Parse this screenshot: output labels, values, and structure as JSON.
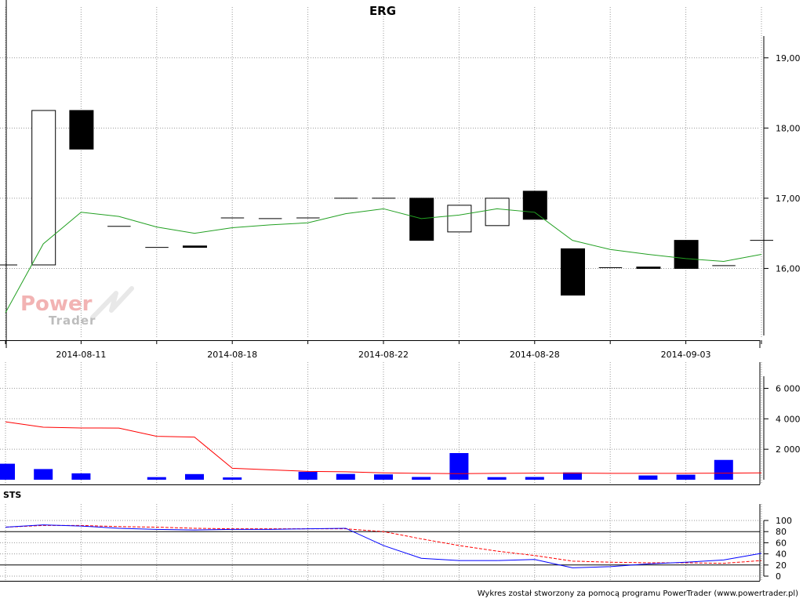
{
  "chart_data": [
    {
      "type": "candlestick",
      "title": "ERG",
      "x": [
        "2014-08-07",
        "2014-08-08",
        "2014-08-11",
        "2014-08-12",
        "2014-08-13",
        "2014-08-14",
        "2014-08-18",
        "2014-08-19",
        "2014-08-20",
        "2014-08-21",
        "2014-08-22",
        "2014-08-25",
        "2014-08-26",
        "2014-08-27",
        "2014-08-28",
        "2014-08-29",
        "2014-09-01",
        "2014-09-02",
        "2014-09-03",
        "2014-09-04",
        "2014-09-05"
      ],
      "x_tick_labels": [
        "2014-08-11",
        "2014-08-18",
        "2014-08-22",
        "2014-08-28",
        "2014-09-03"
      ],
      "candles": [
        {
          "open": 16.05,
          "close": 16.05
        },
        {
          "open": 16.05,
          "close": 18.25
        },
        {
          "open": 18.25,
          "close": 17.7
        },
        {
          "open": 16.6,
          "close": 16.6
        },
        {
          "open": 16.3,
          "close": 16.3
        },
        {
          "open": 16.32,
          "close": 16.3
        },
        {
          "open": 16.72,
          "close": 16.72
        },
        {
          "open": 16.71,
          "close": 16.71
        },
        {
          "open": 16.72,
          "close": 16.72
        },
        {
          "open": 17.0,
          "close": 17.0
        },
        {
          "open": 17.0,
          "close": 17.0
        },
        {
          "open": 17.0,
          "close": 16.4
        },
        {
          "open": 16.52,
          "close": 16.9
        },
        {
          "open": 16.61,
          "close": 17.0
        },
        {
          "open": 17.1,
          "close": 16.7
        },
        {
          "open": 16.28,
          "close": 15.62
        },
        {
          "open": 16.01,
          "close": 16.01
        },
        {
          "open": 16.02,
          "close": 16.0
        },
        {
          "open": 16.4,
          "close": 16.0
        },
        {
          "open": 16.04,
          "close": 16.03
        },
        {
          "open": 16.4,
          "close": 16.4
        }
      ],
      "series": [
        {
          "name": "MA",
          "color": "#22a022",
          "values": [
            15.37,
            16.35,
            16.8,
            16.74,
            16.59,
            16.5,
            16.58,
            16.62,
            16.65,
            16.78,
            16.85,
            16.71,
            16.76,
            16.85,
            16.8,
            16.4,
            16.27,
            16.2,
            16.14,
            16.1,
            16.2
          ]
        }
      ],
      "y_ticks": [
        "16,00",
        "17,00",
        "18,00",
        "19,00"
      ],
      "ylim": [
        15.0,
        19.5
      ],
      "grid": true,
      "colors": {
        "up_fill": "#ffffff",
        "down_fill": "#000000",
        "ma": "#22a022"
      }
    },
    {
      "type": "bar",
      "x": [
        "2014-08-07",
        "2014-08-08",
        "2014-08-11",
        "2014-08-12",
        "2014-08-13",
        "2014-08-14",
        "2014-08-18",
        "2014-08-19",
        "2014-08-20",
        "2014-08-21",
        "2014-08-22",
        "2014-08-25",
        "2014-08-26",
        "2014-08-27",
        "2014-08-28",
        "2014-08-29",
        "2014-09-01",
        "2014-09-02",
        "2014-09-03",
        "2014-09-04",
        "2014-09-05"
      ],
      "values": [
        1050,
        700,
        420,
        0,
        170,
        370,
        150,
        0,
        520,
        380,
        350,
        180,
        1750,
        170,
        180,
        480,
        0,
        280,
        330,
        1300,
        0
      ],
      "series": [
        {
          "name": "Volume MA",
          "color": "#ff0000",
          "values": [
            3800,
            3450,
            3400,
            3390,
            2850,
            2800,
            750,
            650,
            550,
            520,
            450,
            420,
            400,
            420,
            430,
            430,
            420,
            420,
            420,
            430,
            450
          ]
        }
      ],
      "y_ticks": [
        "2 000",
        "4 000",
        "6 000"
      ],
      "ylim": [
        0,
        7000
      ],
      "colors": {
        "bar": "#0000ff",
        "ma": "#ff0000"
      }
    },
    {
      "type": "line",
      "title": "STS",
      "x": [
        "2014-08-07",
        "2014-08-08",
        "2014-08-11",
        "2014-08-12",
        "2014-08-13",
        "2014-08-14",
        "2014-08-18",
        "2014-08-19",
        "2014-08-20",
        "2014-08-21",
        "2014-08-22",
        "2014-08-25",
        "2014-08-26",
        "2014-08-27",
        "2014-08-28",
        "2014-08-29",
        "2014-09-01",
        "2014-09-02",
        "2014-09-03",
        "2014-09-04",
        "2014-09-05"
      ],
      "series": [
        {
          "name": "%K",
          "color": "#0000ff",
          "values": [
            88,
            92,
            90,
            86,
            84,
            83,
            84,
            84,
            85,
            86,
            55,
            32,
            28,
            28,
            30,
            15,
            17,
            22,
            25,
            29,
            41
          ]
        },
        {
          "name": "%D",
          "color": "#ff0000",
          "values": [
            88,
            91,
            91,
            89,
            88,
            86,
            85,
            85,
            85,
            85,
            80,
            67,
            55,
            45,
            37,
            27,
            25,
            24,
            24,
            23,
            28
          ]
        }
      ],
      "y_ticks": [
        "0",
        "20",
        "40",
        "60",
        "80",
        "100"
      ],
      "reference_lines": [
        20,
        80
      ],
      "ylim": [
        0,
        100
      ]
    }
  ],
  "watermark": {
    "line1": "Power",
    "line2": "Trader"
  },
  "footer": "Wykres został stworzony za pomocą programu PowerTrader (www.powertrader.pl)"
}
